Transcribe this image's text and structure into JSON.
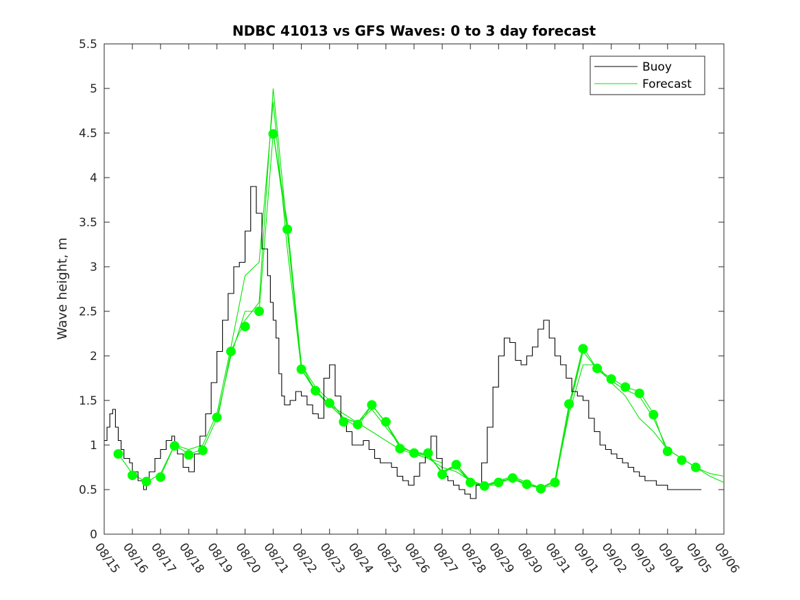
{
  "chart_data": {
    "type": "line",
    "title": "NDBC 41013 vs GFS Waves: 0 to 3 day forecast",
    "xlabel": "",
    "ylabel": "Wave height, m",
    "xlim": [
      0,
      22
    ],
    "ylim": [
      0,
      5.5
    ],
    "yticks": [
      0,
      0.5,
      1,
      1.5,
      2,
      2.5,
      3,
      3.5,
      4,
      4.5,
      5,
      5.5
    ],
    "ytick_labels": [
      "0",
      "0.5",
      "1",
      "1.5",
      "2",
      "2.5",
      "3",
      "3.5",
      "4",
      "4.5",
      "5",
      "5.5"
    ],
    "xtick_labels": [
      "08/15",
      "08/16",
      "08/17",
      "08/18",
      "08/19",
      "08/20",
      "08/21",
      "08/22",
      "08/23",
      "08/24",
      "08/25",
      "08/26",
      "08/27",
      "08/28",
      "08/29",
      "08/30",
      "08/31",
      "09/01",
      "09/02",
      "09/03",
      "09/04",
      "09/05",
      "09/06"
    ],
    "x_units": "days since 08/15 00Z",
    "legend": {
      "position": "top-right",
      "entries": [
        "Buoy",
        "Forecast"
      ]
    },
    "colors": {
      "buoy": "#000000",
      "forecast": "#00e600",
      "marker": "#00ff00"
    },
    "series": [
      {
        "name": "Buoy",
        "x": [
          0,
          0.1,
          0.2,
          0.3,
          0.4,
          0.5,
          0.6,
          0.7,
          0.8,
          0.9,
          1.0,
          1.2,
          1.4,
          1.5,
          1.6,
          1.8,
          2.0,
          2.2,
          2.4,
          2.5,
          2.6,
          2.8,
          3.0,
          3.2,
          3.4,
          3.6,
          3.8,
          4.0,
          4.2,
          4.4,
          4.6,
          4.8,
          5.0,
          5.2,
          5.4,
          5.6,
          5.8,
          5.9,
          6.0,
          6.1,
          6.2,
          6.3,
          6.4,
          6.6,
          6.8,
          7.0,
          7.2,
          7.4,
          7.6,
          7.8,
          8.0,
          8.2,
          8.4,
          8.6,
          8.8,
          9.0,
          9.2,
          9.4,
          9.6,
          9.8,
          10.0,
          10.2,
          10.4,
          10.6,
          10.8,
          11.0,
          11.2,
          11.4,
          11.6,
          11.8,
          12.0,
          12.2,
          12.4,
          12.6,
          12.8,
          13.0,
          13.2,
          13.4,
          13.6,
          13.8,
          14.0,
          14.2,
          14.4,
          14.6,
          14.8,
          15.0,
          15.2,
          15.4,
          15.6,
          15.8,
          16.0,
          16.2,
          16.4,
          16.6,
          16.8,
          17.0,
          17.2,
          17.4,
          17.6,
          17.8,
          18.0,
          18.2,
          18.4,
          18.6,
          18.8,
          19.0,
          19.2,
          19.4,
          19.6,
          19.8,
          20.0,
          20.2,
          20.4,
          20.6,
          20.8,
          21.0,
          21.2
        ],
        "values": [
          1.05,
          1.2,
          1.35,
          1.4,
          1.2,
          1.05,
          0.95,
          0.85,
          0.85,
          0.8,
          0.7,
          0.6,
          0.5,
          0.6,
          0.7,
          0.85,
          0.95,
          1.05,
          1.1,
          1.0,
          0.9,
          0.75,
          0.7,
          0.9,
          1.1,
          1.35,
          1.7,
          2.05,
          2.4,
          2.7,
          3.0,
          3.05,
          3.4,
          3.9,
          3.6,
          3.2,
          2.9,
          2.6,
          2.4,
          2.2,
          1.8,
          1.55,
          1.45,
          1.5,
          1.6,
          1.55,
          1.45,
          1.35,
          1.3,
          1.75,
          1.9,
          1.55,
          1.3,
          1.15,
          1.0,
          1.0,
          1.05,
          0.95,
          0.85,
          0.8,
          0.8,
          0.75,
          0.65,
          0.6,
          0.55,
          0.65,
          0.8,
          0.95,
          1.1,
          0.85,
          0.65,
          0.6,
          0.55,
          0.5,
          0.45,
          0.4,
          0.55,
          0.8,
          1.2,
          1.65,
          2.0,
          2.2,
          2.15,
          1.95,
          1.9,
          2.0,
          2.1,
          2.3,
          2.4,
          2.2,
          2.0,
          1.9,
          1.75,
          1.6,
          1.55,
          1.5,
          1.3,
          1.15,
          1.0,
          0.95,
          0.9,
          0.85,
          0.8,
          0.75,
          0.7,
          0.65,
          0.6,
          0.6,
          0.55,
          0.55,
          0.5,
          0.5,
          0.5,
          0.5,
          0.5,
          0.5,
          0.5
        ]
      },
      {
        "name": "Forecast",
        "runs": [
          {
            "x": [
              0.5,
              1.0,
              1.5,
              2.0,
              2.5,
              3.0,
              3.5,
              4.0,
              4.5,
              5.0,
              5.5,
              6.0,
              6.5,
              7.0,
              7.5,
              8.0,
              8.5,
              9.0,
              9.5,
              10.0,
              10.5,
              11.0,
              11.5,
              12.0
            ],
            "values": [
              0.9,
              0.68,
              0.58,
              0.68,
              1.0,
              0.95,
              1.0,
              1.35,
              2.1,
              2.9,
              3.05,
              4.85,
              3.2,
              1.85,
              1.62,
              1.45,
              1.35,
              1.25,
              1.15,
              1.05,
              0.95,
              0.9,
              0.85,
              0.8
            ]
          },
          {
            "x": [
              2.0,
              2.5,
              3.0,
              3.5,
              4.0,
              4.5,
              5.0,
              5.5,
              6.0,
              6.5,
              7.0,
              7.5,
              8.0,
              8.5,
              9.0,
              9.5,
              10.0,
              10.5,
              11.0,
              11.5,
              12.0,
              12.5,
              13.0,
              13.5,
              14.0
            ],
            "values": [
              0.65,
              1.0,
              0.9,
              0.95,
              1.3,
              2.0,
              2.5,
              2.5,
              4.5,
              3.5,
              1.9,
              1.6,
              1.45,
              1.3,
              1.25,
              1.4,
              1.2,
              1.0,
              0.9,
              0.85,
              0.75,
              0.7,
              0.6,
              0.55,
              0.55
            ]
          },
          {
            "x": [
              4.0,
              4.5,
              5.0,
              5.5,
              6.0,
              6.5,
              7.0,
              7.5,
              8.0,
              8.5,
              9.0,
              9.5,
              10.0,
              10.5,
              11.0,
              11.5,
              12.0,
              12.5,
              13.0,
              13.5,
              14.0,
              14.5,
              15.0,
              15.5,
              16.0,
              16.5,
              17.0
            ],
            "values": [
              1.25,
              2.05,
              2.4,
              2.6,
              5.0,
              3.4,
              1.9,
              1.65,
              1.5,
              1.3,
              1.2,
              1.45,
              1.25,
              1.0,
              0.9,
              0.88,
              0.7,
              0.78,
              0.6,
              0.55,
              0.6,
              0.65,
              0.58,
              0.52,
              0.55,
              1.4,
              2.05
            ]
          },
          {
            "x": [
              6.0,
              6.5,
              7.0,
              7.5,
              8.0,
              8.5,
              9.0,
              9.5,
              10.0,
              10.5,
              11.0,
              11.5,
              12.0,
              12.5,
              13.0,
              13.5,
              14.0,
              14.5,
              15.0,
              15.5,
              16.0,
              16.5,
              17.0,
              17.5,
              18.0,
              18.5,
              19.0,
              19.5,
              20.0
            ],
            "values": [
              4.5,
              3.4,
              1.85,
              1.6,
              1.45,
              1.3,
              1.25,
              1.45,
              1.25,
              0.97,
              0.92,
              0.9,
              0.68,
              0.78,
              0.58,
              0.54,
              0.58,
              0.62,
              0.56,
              0.52,
              0.6,
              1.45,
              2.1,
              1.85,
              1.75,
              1.65,
              1.6,
              1.35,
              0.9
            ]
          },
          {
            "x": [
              8.0,
              8.5,
              9.0,
              9.5,
              10.0,
              10.5,
              11.0,
              11.5,
              12.0,
              12.5,
              13.0,
              13.5,
              14.0,
              14.5,
              15.0,
              15.5,
              16.0,
              16.5,
              17.0,
              17.5,
              18.0,
              18.5,
              19.0,
              19.5,
              20.0,
              20.5,
              21.0,
              21.5,
              22.0
            ],
            "values": [
              1.5,
              1.3,
              1.25,
              1.45,
              1.25,
              0.97,
              0.92,
              0.9,
              0.68,
              0.78,
              0.6,
              0.54,
              0.58,
              0.64,
              0.56,
              0.52,
              0.6,
              1.45,
              2.05,
              1.85,
              1.72,
              1.62,
              1.55,
              1.3,
              0.95,
              0.85,
              0.75,
              0.68,
              0.65
            ]
          },
          {
            "x": [
              11.0,
              11.5,
              12.0,
              12.5,
              13.0,
              13.5,
              14.0,
              14.5,
              15.0,
              15.5,
              16.0,
              16.5,
              17.0,
              17.5,
              18.0,
              18.5,
              19.0,
              19.5,
              20.0,
              20.5,
              21.0,
              21.5,
              22.0
            ],
            "values": [
              0.92,
              0.88,
              0.7,
              0.75,
              0.58,
              0.53,
              0.6,
              0.62,
              0.55,
              0.52,
              0.58,
              1.35,
              1.9,
              1.9,
              1.7,
              1.55,
              1.3,
              1.15,
              0.95,
              0.85,
              0.75,
              0.65,
              0.58
            ]
          }
        ],
        "markers": {
          "x": [
            0.5,
            1.0,
            1.5,
            2.0,
            2.5,
            3.0,
            3.5,
            4.0,
            4.5,
            5.0,
            5.5,
            6.0,
            6.5,
            7.0,
            7.5,
            8.0,
            8.5,
            9.0,
            9.5,
            10.0,
            10.5,
            11.0,
            11.5,
            12.0,
            12.5,
            13.0,
            13.5,
            14.0,
            14.5,
            15.0,
            15.5,
            16.0,
            16.5,
            17.0,
            17.5,
            18.0,
            18.5,
            19.0,
            19.5,
            20.0,
            20.5,
            21.0
          ],
          "values": [
            0.9,
            0.66,
            0.59,
            0.64,
            0.99,
            0.89,
            0.94,
            1.31,
            2.05,
            2.33,
            2.5,
            4.49,
            3.42,
            1.85,
            1.61,
            1.47,
            1.26,
            1.23,
            1.45,
            1.26,
            0.96,
            0.91,
            0.91,
            0.67,
            0.78,
            0.58,
            0.54,
            0.58,
            0.63,
            0.56,
            0.51,
            0.58,
            1.46,
            2.08,
            1.86,
            1.74,
            1.65,
            1.58,
            1.34,
            0.93,
            0.83,
            0.75
          ]
        }
      }
    ]
  }
}
